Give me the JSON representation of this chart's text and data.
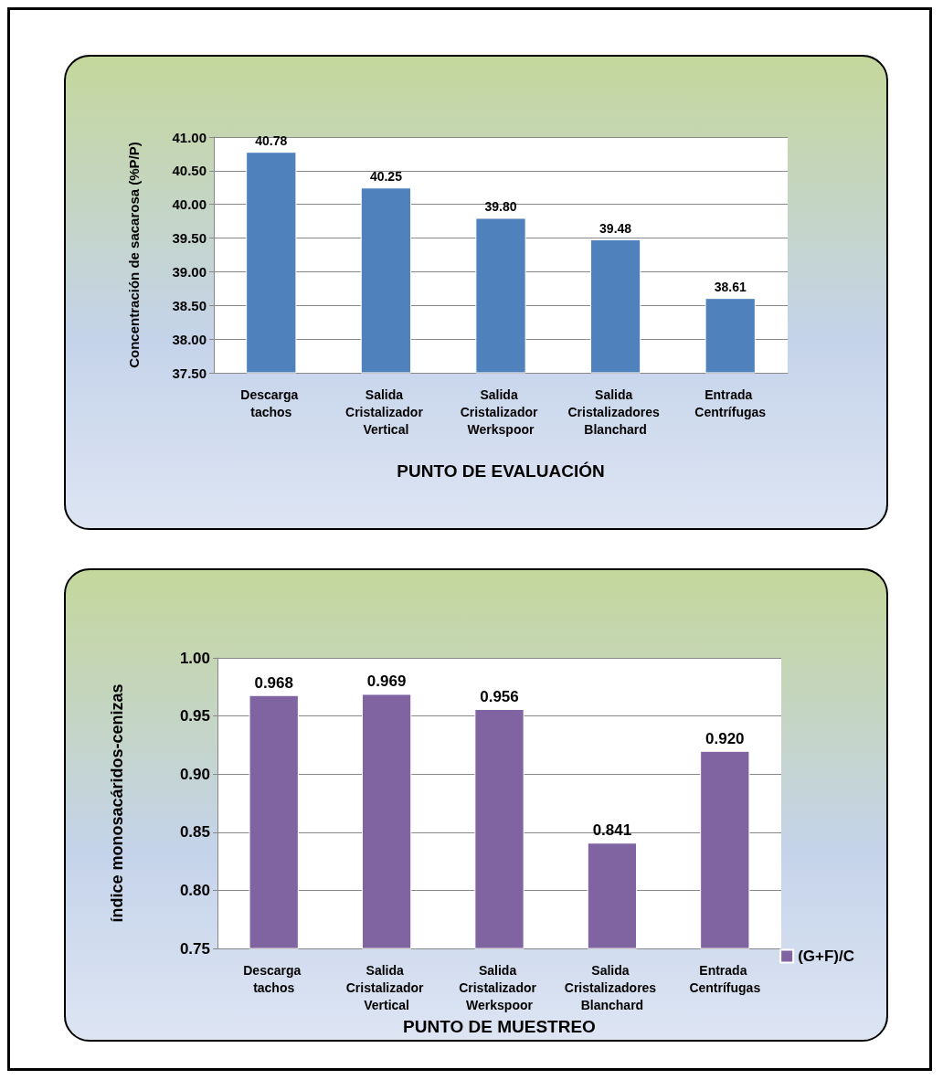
{
  "chart_data": [
    {
      "type": "bar",
      "ylabel": "Concentración de sacarosa (%P/P)",
      "xlabel": "PUNTO DE EVALUACIÓN",
      "categories": [
        "Descarga tachos",
        "Salida Cristalizador Vertical",
        "Salida Cristalizador Werkspoor",
        "Salida Cristalizadores Blanchard",
        "Entrada Centrífugas"
      ],
      "series": [
        {
          "color": "#4f81bd",
          "values": [
            40.78,
            40.25,
            39.8,
            39.48,
            38.61
          ],
          "value_labels": [
            "40.78",
            "40.25",
            "39.80",
            "39.48",
            "38.61"
          ]
        }
      ],
      "ylim": [
        37.5,
        41
      ],
      "yticks": [
        {
          "value": 37.5,
          "label": "37.50"
        },
        {
          "value": 38,
          "label": "38.00"
        },
        {
          "value": 38.5,
          "label": "38.50"
        },
        {
          "value": 39,
          "label": "39.00"
        },
        {
          "value": 39.5,
          "label": "39.50"
        },
        {
          "value": 40,
          "label": "40.00"
        },
        {
          "value": 40.5,
          "label": "40.50"
        },
        {
          "value": 41,
          "label": "41.00"
        }
      ],
      "grid": "y",
      "legend": false
    },
    {
      "type": "bar",
      "ylabel": "índice monosacáridos-cenizas",
      "xlabel": "PUNTO DE MUESTREO",
      "categories": [
        "Descarga tachos",
        "Salida Cristalizador Vertical",
        "Salida Cristalizador Werkspoor",
        "Salida Cristalizadores Blanchard",
        "Entrada Centrífugas"
      ],
      "series": [
        {
          "name": "(G+F)/C",
          "color": "#8064a2",
          "values": [
            0.968,
            0.969,
            0.956,
            0.841,
            0.92
          ],
          "value_labels": [
            "0.968",
            "0.969",
            "0.956",
            "0.841",
            "0.920"
          ]
        }
      ],
      "ylim": [
        0.75,
        1.0
      ],
      "yticks": [
        {
          "value": 0.75,
          "label": "0.75"
        },
        {
          "value": 0.8,
          "label": "0.80"
        },
        {
          "value": 0.85,
          "label": "0.85"
        },
        {
          "value": 0.9,
          "label": "0.90"
        },
        {
          "value": 0.95,
          "label": "0.95"
        },
        {
          "value": 1.0,
          "label": "1.00"
        }
      ],
      "grid": "y",
      "legend": "bottom right"
    }
  ]
}
